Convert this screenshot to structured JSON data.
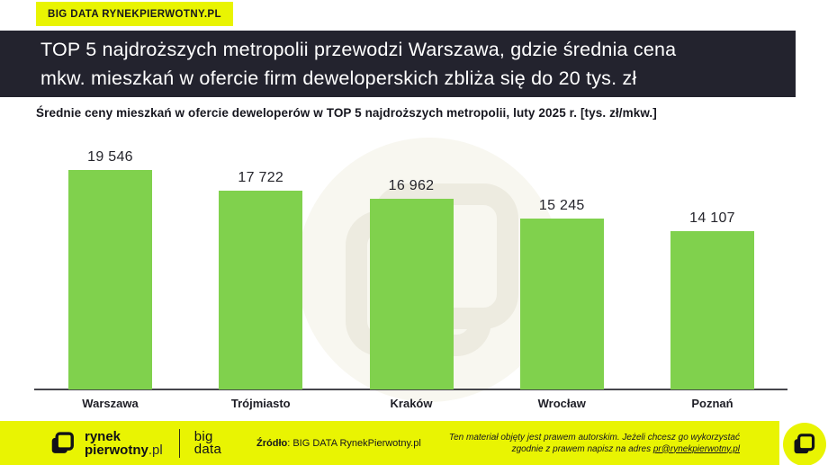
{
  "badge": {
    "label": "BIG DATA RYNEKPIERWOTNY.PL"
  },
  "header": {
    "title_line1": "TOP 5 najdroższych metropolii przewodzi Warszawa, gdzie średnia cena",
    "title_line2": "mkw. mieszkań w ofercie firm deweloperskich zbliża się do 20 tys. zł"
  },
  "subtitle": "Średnie ceny mieszkań w ofercie deweloperów w TOP 5 najdroższych metropolii, luty 2025 r. [tys. zł/mkw.]",
  "chart_data": {
    "type": "bar",
    "title": "Średnie ceny mieszkań w ofercie deweloperów w TOP 5 najdroższych metropolii, luty 2025 r. [tys. zł/mkw.]",
    "categories": [
      "Warszawa",
      "Trójmiasto",
      "Kraków",
      "Wrocław",
      "Poznań"
    ],
    "values": [
      19546,
      17722,
      16962,
      15245,
      14107
    ],
    "value_labels": [
      "19 546",
      "17 722",
      "16 962",
      "15 245",
      "14 107"
    ],
    "xlabel": "",
    "ylabel": "tys. zł/mkw.",
    "ylim": [
      0,
      20000
    ],
    "grid": false,
    "legend": false,
    "bar_color": "#80d14d"
  },
  "footer": {
    "brand": {
      "line1": "rynek",
      "line2_bold": "pierwotny",
      "line2_suffix": ".pl"
    },
    "bigdata": {
      "line1": "big",
      "line2": "data"
    },
    "source": {
      "label": "Źródło",
      "value": ": BIG DATA RynekPierwotny.pl"
    },
    "copyright": {
      "line1": "Ten materiał objęty jest prawem autorskim. Jeżeli chcesz go wykorzystać",
      "line2_prefix": "zgodnie z prawem napisz na adres ",
      "email": "pr@rynekpierwotny.pl"
    }
  },
  "colors": {
    "accent_yellow": "#e9f402",
    "bar_green": "#80d14d",
    "title_bar_bg": "#23232e",
    "watermark_bg": "#f8f7f0"
  }
}
